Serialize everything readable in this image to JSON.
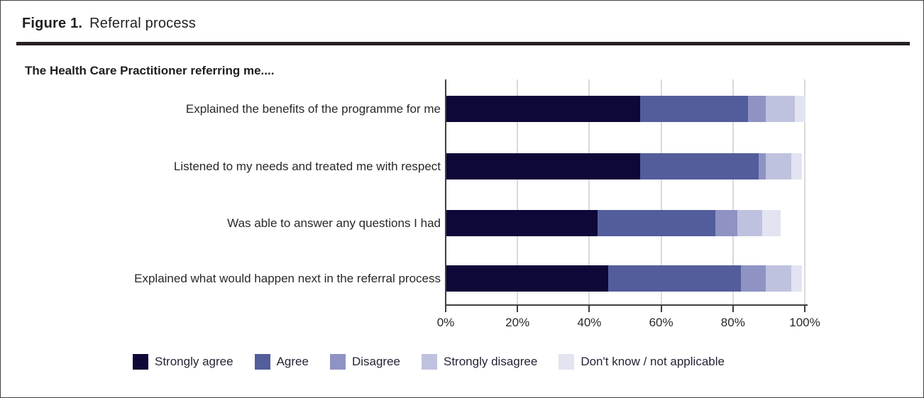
{
  "figure": {
    "label": "Figure 1.",
    "title": "Referral process"
  },
  "chart_data": {
    "type": "bar",
    "orientation": "horizontal",
    "stacked": true,
    "grid": true,
    "legend_position": "bottom",
    "prompt": "The Health Care Practitioner referring me....",
    "categories": [
      "Explained the benefits of the programme for me",
      "Listened to my needs and treated me with respect",
      "Was able to answer any questions I had",
      "Explained what would happen next in the referral process"
    ],
    "series": [
      {
        "name": "Strongly agree",
        "color": "#0d0838",
        "values": [
          54,
          54,
          42,
          45
        ]
      },
      {
        "name": "Agree",
        "color": "#535d9b",
        "values": [
          30,
          33,
          33,
          37
        ]
      },
      {
        "name": "Disagree",
        "color": "#8e93c4",
        "values": [
          5,
          2,
          6,
          7
        ]
      },
      {
        "name": "Strongly disagree",
        "color": "#bfc2de",
        "values": [
          8,
          7,
          7,
          7
        ]
      },
      {
        "name": "Don't know / not applicable",
        "color": "#e3e4f1",
        "values": [
          3,
          3,
          5,
          3
        ]
      }
    ],
    "xlim": [
      0,
      100
    ],
    "xticks": [
      {
        "value": 0,
        "label": "0%"
      },
      {
        "value": 20,
        "label": "20%"
      },
      {
        "value": 40,
        "label": "40%"
      },
      {
        "value": 60,
        "label": "60%"
      },
      {
        "value": 80,
        "label": "80%"
      },
      {
        "value": 100,
        "label": "100%"
      }
    ],
    "axis_color": "#3f3f41",
    "gridline_color": "#d9d9d9"
  }
}
